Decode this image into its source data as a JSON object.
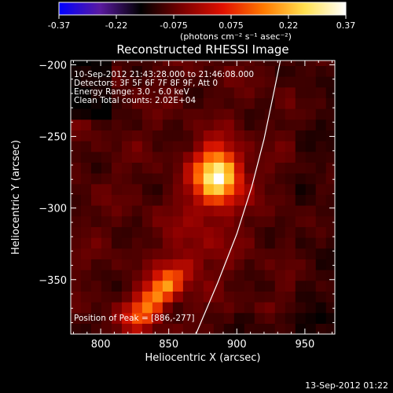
{
  "chart_data": {
    "type": "heatmap",
    "title": "Reconstructed RHESSI Image",
    "xlabel": "Heliocentric X (arcsec)",
    "ylabel": "Heliocentric Y (arcsec)",
    "xlim": [
      778,
      972
    ],
    "ylim": [
      -388,
      -197
    ],
    "xticks": [
      800,
      850,
      900,
      950
    ],
    "yticks": [
      -200,
      -250,
      -300,
      -350
    ],
    "colorbar": {
      "min": -0.37,
      "max": 0.37,
      "ticks": [
        "-0.37",
        "-0.22",
        "-0.075",
        "0.075",
        "0.22",
        "0.37"
      ],
      "unit_label": "(photons cm⁻² s⁻¹ asec⁻²)",
      "colormap": [
        "#0000ff",
        "#5a1aa0",
        "#000000",
        "#7a0000",
        "#e01000",
        "#ff7a00",
        "#ffe050",
        "#ffffff"
      ]
    },
    "annotations": [
      "10-Sep-2012 21:43:28.000 to 21:46:08.000",
      "Detectors: 3F 5F 6F 7F 8F 9F, Att 0",
      "Energy Range: 3.0 - 6.0 keV",
      "Clean     Total counts: 2.02E+04"
    ],
    "peak_label": "Position of Peak = [886,-277]",
    "sources": [
      {
        "x": 886,
        "y": -277,
        "peak": 0.37
      },
      {
        "x": 844,
        "y": -358,
        "peak": 0.27
      }
    ],
    "limb_curve": [
      [
        870,
        -388
      ],
      [
        886,
        -352
      ],
      [
        900,
        -318
      ],
      [
        911,
        -285
      ],
      [
        920,
        -252
      ],
      [
        927,
        -220
      ],
      [
        932,
        -197
      ]
    ]
  },
  "footer": {
    "timestamp": "13-Sep-2012 01:22"
  }
}
